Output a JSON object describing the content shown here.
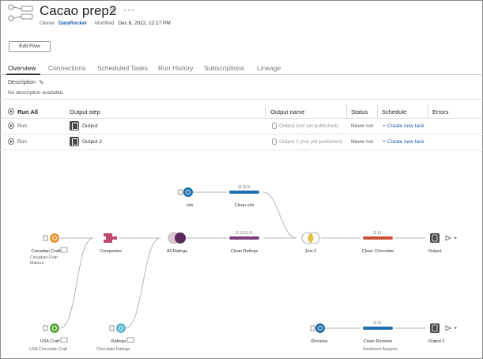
{
  "header": {
    "title": "Cacao prep2",
    "owner_label": "Owner",
    "owner_name": "DataRocker",
    "modified_label": "Modified",
    "modified_value": "Dec 8, 2022, 12:17 PM",
    "edit_button": "Edit Flow",
    "more_label": "···"
  },
  "tabs": [
    "Overview",
    "Connections",
    "Scheduled Tasks",
    "Run History",
    "Subscriptions",
    "Lineage"
  ],
  "description": {
    "label": "Description",
    "value": "No description available."
  },
  "table": {
    "run_all": "Run All",
    "headers": [
      "Output step",
      "Output name",
      "Status",
      "Schedule",
      "Errors"
    ],
    "rows": [
      {
        "run": "Run",
        "step": "Output",
        "name": "Output (not yet published)",
        "status": "Never run",
        "schedule": "+ Create new task"
      },
      {
        "run": "Run",
        "step": "Output 2",
        "name": "Output 2 (not yet published)",
        "status": "Never run",
        "schedule": "+ Create new task"
      }
    ]
  },
  "flow": {
    "nodes": {
      "urls": "urls",
      "clean_urls": "Clean urls",
      "canadian_craft": "Canadian Craft",
      "canadian_craft_sub": "Canadian Craft Makers",
      "companies": "Companies",
      "all_ratings": "All Ratings",
      "clean_ratings": "Clean Ratings",
      "join2": "Join 2",
      "clean_chocolate": "Clean Chocolate",
      "output": "Output",
      "usa_craft": "USA Craft",
      "usa_craft_sub": "USA Chocolate Craft",
      "ratings": "Ratings",
      "ratings_sub": "Chocolate Ratings",
      "reviews": "Reviews",
      "clean_reviews": "Clean Reviews",
      "clean_reviews_sub": "Sentiment Analysis",
      "output2": "Output 2"
    },
    "colors": {
      "blue_node": "#1f6fa8",
      "orange_node": "#e8962f",
      "green_node": "#5aa53a",
      "light_blue_node": "#5bb6cf",
      "purple_bar": "#7a3e7a",
      "pink_node": "#c04a6e",
      "red_bar": "#c9513a",
      "dark_output": "#4a4a4a",
      "join_left": "#e8c13a",
      "join_right": "#8a73b8"
    }
  }
}
